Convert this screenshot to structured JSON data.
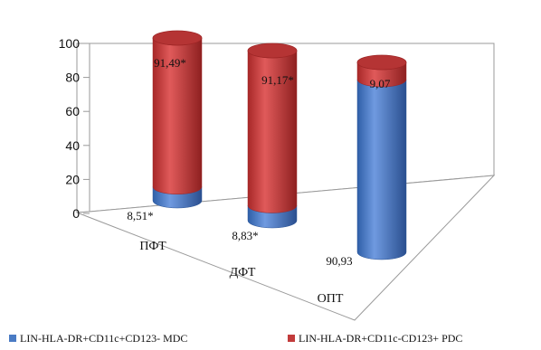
{
  "chart_data": {
    "type": "bar",
    "style": "stacked-100-3d-cylinder",
    "title": "",
    "xlabel": "",
    "ylabel": "",
    "ylim": [
      0,
      100
    ],
    "yticks": [
      0,
      20,
      40,
      60,
      80,
      100
    ],
    "grid": false,
    "legend_position": "bottom",
    "categories": [
      "ПФТ",
      "ДФТ",
      "ОПТ"
    ],
    "series": [
      {
        "name": "LIN-HLA-DR+CD11c+CD123- MDC",
        "color": "#4a7bc4",
        "values": [
          8.51,
          8.83,
          90.93
        ],
        "labels": [
          "8,51*",
          "8,83*",
          "90,93"
        ]
      },
      {
        "name": "LIN-HLA-DR+CD11c-CD123+ PDC",
        "color": "#c23b3b",
        "values": [
          91.49,
          91.17,
          9.07
        ],
        "labels": [
          "91,49*",
          "91,17*",
          "9,07"
        ]
      }
    ]
  }
}
